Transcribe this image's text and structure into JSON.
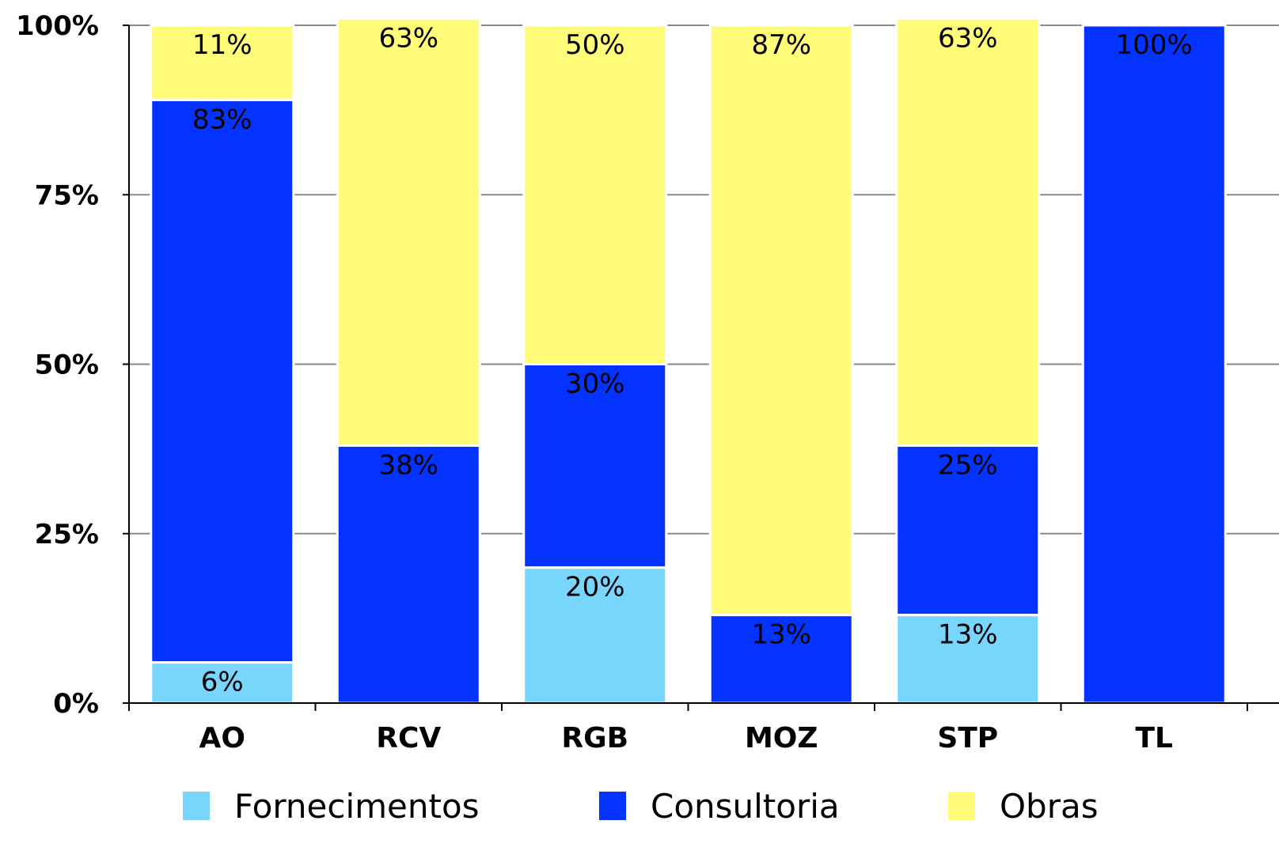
{
  "chart_data": {
    "type": "bar",
    "stacked": true,
    "categories": [
      "AO",
      "RCV",
      "RGB",
      "MOZ",
      "STP",
      "TL"
    ],
    "series": [
      {
        "name": "Fornecimentos",
        "color": "#78D5FC",
        "values": [
          6,
          0,
          20,
          0,
          13,
          0
        ],
        "labels": [
          "6%",
          "",
          "20%",
          "",
          "13%",
          ""
        ]
      },
      {
        "name": "Consultoria",
        "color": "#0433FF",
        "values": [
          83,
          38,
          30,
          13,
          25,
          100
        ],
        "labels": [
          "83%",
          "38%",
          "30%",
          "13%",
          "25%",
          "100%"
        ]
      },
      {
        "name": "Obras",
        "color": "#FFFC79",
        "values": [
          11,
          63,
          50,
          87,
          63,
          0
        ],
        "labels": [
          "11%",
          "63%",
          "50%",
          "87%",
          "63%",
          ""
        ]
      }
    ],
    "yticks": [
      "0%",
      "25%",
      "50%",
      "75%",
      "100%"
    ],
    "ylim": [
      0,
      100
    ],
    "title": "",
    "xlabel": "",
    "ylabel": "",
    "grid": true,
    "legend": "bottom"
  }
}
